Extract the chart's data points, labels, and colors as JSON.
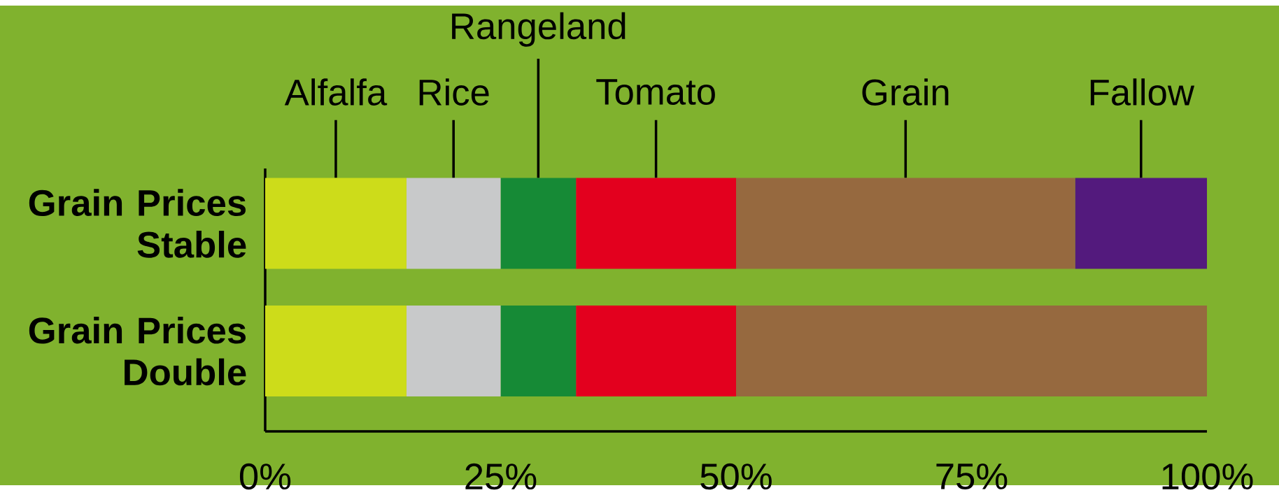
{
  "chart_data": {
    "type": "bar",
    "orientation": "horizontal",
    "stacked": true,
    "categories": [
      "Grain Prices Stable",
      "Grain Prices Double"
    ],
    "series": [
      {
        "name": "Alfalfa",
        "color": "#cddc1a",
        "values": [
          15,
          15
        ]
      },
      {
        "name": "Rice",
        "color": "#c8c9ca",
        "values": [
          10,
          10
        ]
      },
      {
        "name": "Rangeland",
        "color": "#168a36",
        "values": [
          8,
          8
        ]
      },
      {
        "name": "Tomato",
        "color": "#e3001e",
        "values": [
          17,
          17
        ]
      },
      {
        "name": "Grain",
        "color": "#96693f",
        "values": [
          36,
          50
        ]
      },
      {
        "name": "Fallow",
        "color": "#531a7d",
        "values": [
          14,
          0
        ]
      }
    ],
    "xlim": [
      0,
      100
    ],
    "xticks": [
      {
        "value": 0,
        "label": "0%"
      },
      {
        "value": 25,
        "label": "25%"
      },
      {
        "value": 50,
        "label": "50%"
      },
      {
        "value": 75,
        "label": "75%"
      },
      {
        "value": 100,
        "label": "100%"
      }
    ]
  }
}
